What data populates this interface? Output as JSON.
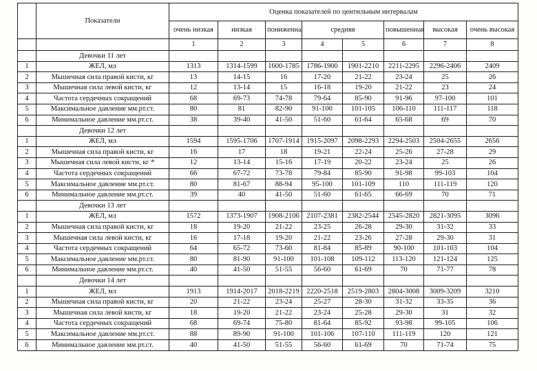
{
  "table": {
    "corner_label": "",
    "indicators_header": "Показатели",
    "main_header": "Оценка показателей по центильным интервалам",
    "quality_headers": [
      {
        "label": "очень низкая",
        "span": 1
      },
      {
        "label": "низкая",
        "span": 1
      },
      {
        "label": "пониженная",
        "span": 1
      },
      {
        "label": "средняя",
        "span": 2
      },
      {
        "label": "повышенная",
        "span": 1
      },
      {
        "label": "высокая",
        "span": 1
      },
      {
        "label": "очень высокая",
        "span": 1
      }
    ],
    "column_numbers": [
      "1",
      "2",
      "3",
      "4",
      "5",
      "6",
      "7",
      "8"
    ],
    "sections": [
      {
        "title": "Девочки 11 лет",
        "rows": [
          {
            "num": "1",
            "label": "ЖЕЛ, мл",
            "values": [
              "1313",
              "1314-1599",
              "1600-1785",
              "1786-1900",
              "1901-2210",
              "2211-2295",
              "2296-2406",
              "2409"
            ]
          },
          {
            "num": "2",
            "label": "Мышечная сила правой кисти, кг",
            "values": [
              "13",
              "14-15",
              "16",
              "17-20",
              "21-22",
              "23-24",
              "25",
              "26"
            ]
          },
          {
            "num": "3",
            "label": "Мышечная сила левой кисти, кг",
            "values": [
              "12",
              "13-14",
              "15",
              "16-18",
              "19-20",
              "21-22",
              "23",
              "24"
            ]
          },
          {
            "num": "4",
            "label": "Частота сердечных сокращений",
            "values": [
              "68",
              "69-73",
              "74-78",
              "79-64",
              "85-90",
              "91-96",
              "97-100",
              "101"
            ]
          },
          {
            "num": "5",
            "label": "Максимальное давление мм.рт.ст.",
            "values": [
              "80",
              "81",
              "82-90",
              "91-100",
              "101-105",
              "106-110",
              "111-117",
              "118"
            ]
          },
          {
            "num": "6",
            "label": "Минимальное давление мм.рт.ст.",
            "values": [
              "38",
              "39-40",
              "41-50",
              "51-60",
              "61-64",
              "65-68",
              "69",
              "70"
            ]
          }
        ]
      },
      {
        "title": "Девочки 12 лет",
        "rows": [
          {
            "num": "1",
            "label": "ЖЕЛ, мл",
            "values": [
              "1594",
              "1595-1706",
              "1707-1914",
              "1915-2097",
              "2098-2293",
              "2294-2503",
              "2504-2655",
              "2656"
            ]
          },
          {
            "num": "2",
            "label": "Мышечная сила правой кисти, кг",
            "values": [
              "16",
              "17",
              "18",
              "19-21",
              "22-24",
              "25-26",
              "27-28",
              "29"
            ]
          },
          {
            "num": "3",
            "label": "Мышечная сила левой кисти, кг *",
            "values": [
              "12",
              "13-14",
              "15-16",
              "17-19",
              "20-22",
              "23-24",
              "25",
              "26"
            ]
          },
          {
            "num": "4",
            "label": "Частота сердечных сокращений",
            "values": [
              "66",
              "67-72",
              "73-78",
              "79-84",
              "85-90",
              "91-98",
              "99-103",
              "104"
            ]
          },
          {
            "num": "5",
            "label": "Максимальное давление мм.рт.ст.",
            "values": [
              "80",
              "81-67",
              "88-94",
              "95-100",
              "101-109",
              "110",
              "111-119",
              "120"
            ]
          },
          {
            "num": "6",
            "label": "Минимальное давление мм.рт.ст.",
            "values": [
              "39",
              "40",
              "41-50",
              "51-60",
              "61-65",
              "66-69",
              "70",
              "71"
            ]
          }
        ]
      },
      {
        "title": "Девочки 13 лет",
        "rows": [
          {
            "num": "1",
            "label": "ЖЕЛ, мл",
            "values": [
              "1572",
              "1373-1907",
              "1908-2106",
              "2107-2381",
              "2382-2544",
              "2545-2820",
              "2821-3095",
              "3096"
            ]
          },
          {
            "num": "2",
            "label": "Мышечная сила правой кисти, кг",
            "values": [
              "18",
              "19-20",
              "21-22",
              "23-25",
              "26-28",
              "29-30",
              "31-32",
              "33"
            ]
          },
          {
            "num": "3",
            "label": "Мышечная сила левой кисти, кг",
            "values": [
              "16",
              "17-18",
              "19-20",
              "21-22",
              "23-26",
              "27-28",
              "29-30",
              "31"
            ]
          },
          {
            "num": "4",
            "label": "Частота сердечных сокращений",
            "values": [
              "64",
              "65-72",
              "73-60",
              "81-84",
              "85-89",
              "90-100",
              "101-103",
              "104"
            ]
          },
          {
            "num": "5",
            "label": "Максимальное давление мм.рт.ст.",
            "values": [
              "80",
              "81-90",
              "91-100",
              "101-108",
              "109-112",
              "113-120",
              "121-124",
              "125"
            ]
          },
          {
            "num": "6",
            "label": "Минимальное давление мм.рт.ст.",
            "values": [
              "40",
              "41-50",
              "51-55",
              "56-60",
              "61-69",
              "70",
              "71-77",
              "78"
            ]
          }
        ]
      },
      {
        "title": "Девочки 14 лет",
        "rows": [
          {
            "num": "1",
            "label": "ЖЕЛ, мл",
            "values": [
              "1913",
              "1914-2017",
              "2018-2219",
              "2220-2518",
              "2519-2803",
              "2804-3008",
              "3009-3209",
              "3210"
            ]
          },
          {
            "num": "2",
            "label": "Мышечная сила правой кисти, кг",
            "values": [
              "20",
              "21-22",
              "23-24",
              "25-27",
              "28-30",
              "31-32",
              "33-35",
              "36"
            ]
          },
          {
            "num": "3",
            "label": "Мышечная сила левой кисти, кг",
            "values": [
              "18",
              "19-20",
              "21-22",
              "23-24",
              "25-28",
              "29-30",
              "31",
              "32"
            ]
          },
          {
            "num": "4",
            "label": "Частота сердечных сокращений",
            "values": [
              "68",
              "69-74",
              "75-80",
              "81-64",
              "85-92",
              "93-98",
              "99-105",
              "106"
            ]
          },
          {
            "num": "5",
            "label": "Максимальное давление мм.рт.ст.",
            "values": [
              "88",
              "89-90",
              "91-100",
              "101-106",
              "107-110",
              "111-119",
              "120",
              "121"
            ]
          },
          {
            "num": "6",
            "label": "Минимальное давление мм.рт.ст.",
            "values": [
              "40",
              "41-50",
              "51-55",
              "56-60",
              "61-69",
              "70",
              "71-74",
              "75"
            ]
          }
        ]
      }
    ]
  }
}
